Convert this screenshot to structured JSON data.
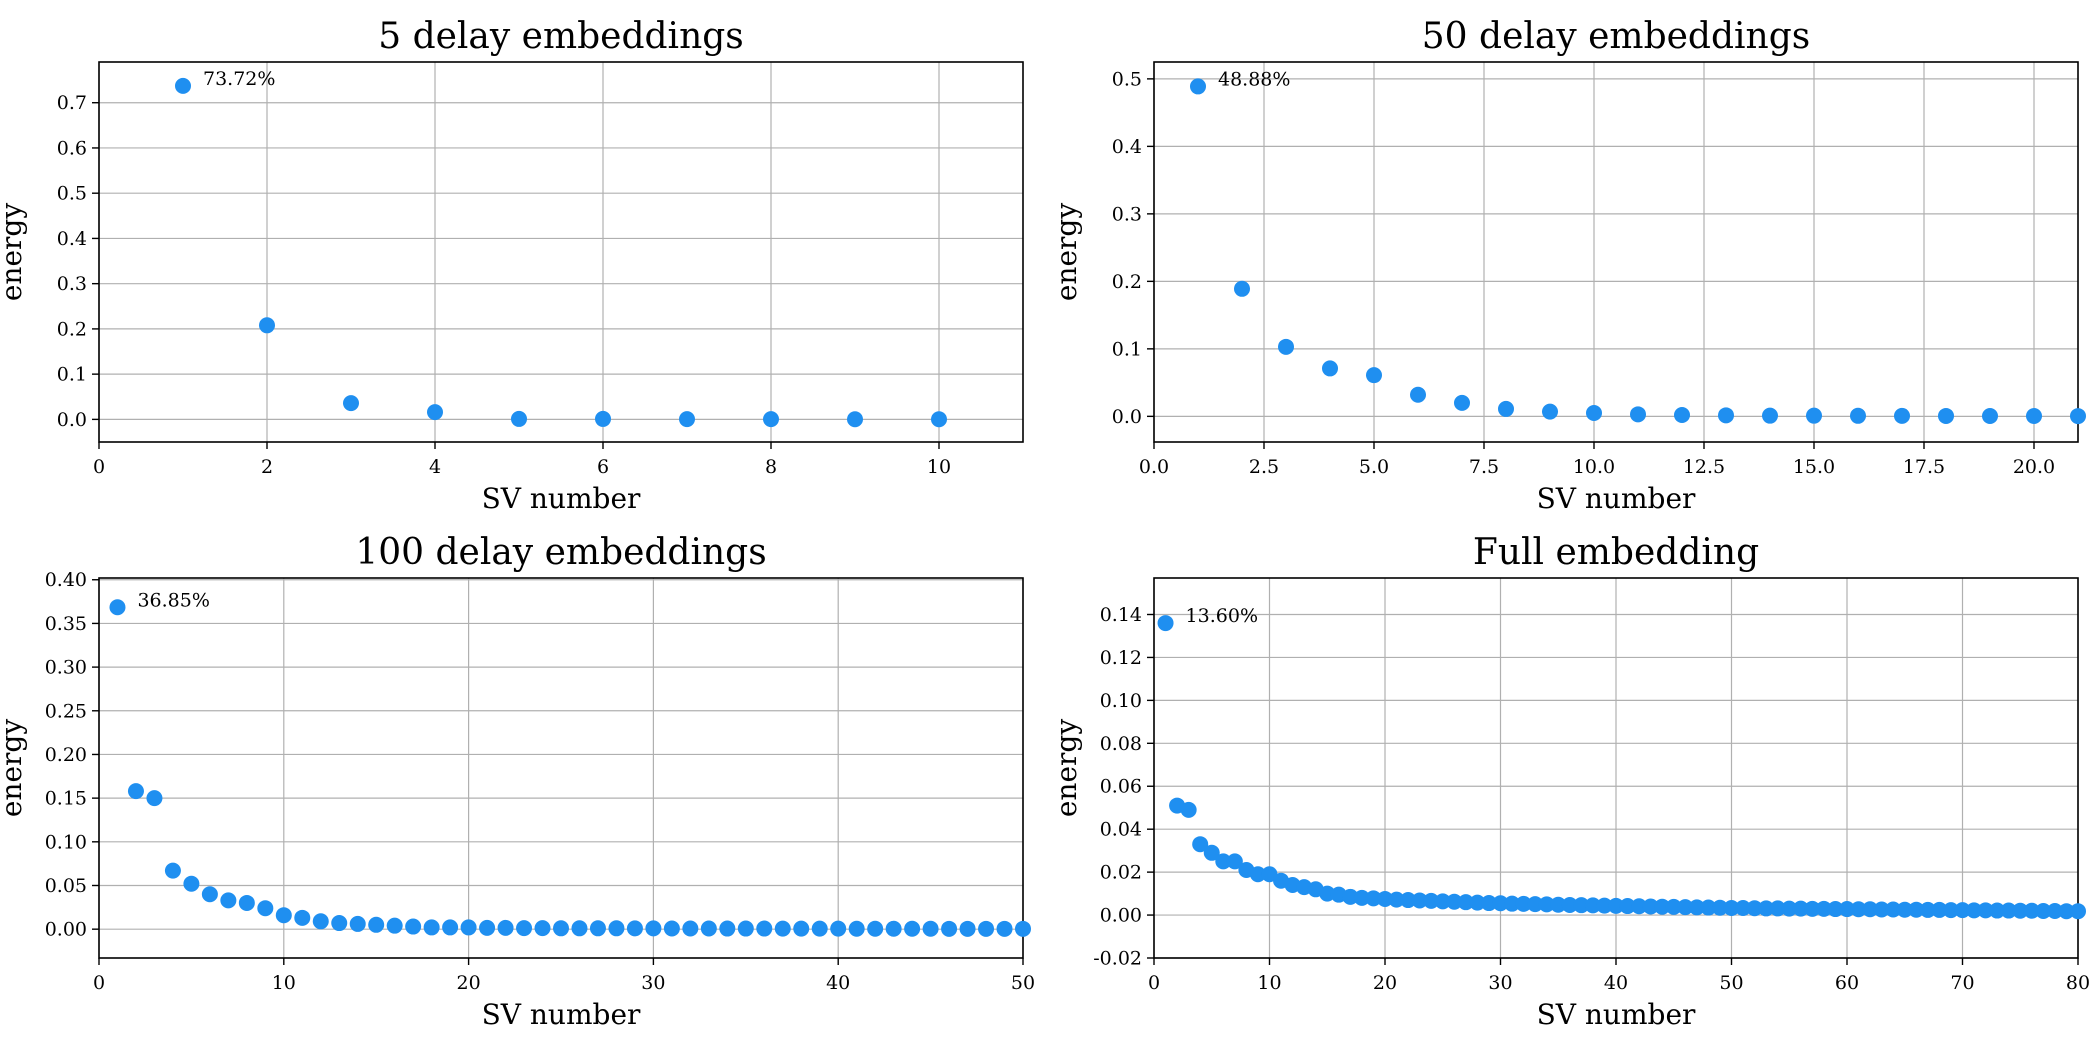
{
  "chart_data": [
    {
      "type": "scatter",
      "title": "5 delay embeddings",
      "xlabel": "SV number",
      "ylabel": "energy",
      "xlim": [
        0,
        11
      ],
      "ylim": [
        -0.05,
        0.79
      ],
      "xticks": [
        0,
        2,
        4,
        6,
        8,
        10
      ],
      "yticks": [
        0.0,
        0.1,
        0.2,
        0.3,
        0.4,
        0.5,
        0.6,
        0.7
      ],
      "xtick_decimals": 0,
      "ytick_decimals": 1,
      "grid": true,
      "color": "#1f8ff0",
      "annotation": "73.72%",
      "x": [
        1,
        2,
        3,
        4,
        5,
        6,
        7,
        8,
        9,
        10
      ],
      "y": [
        0.7372,
        0.208,
        0.036,
        0.016,
        0.001,
        0.001,
        0.0005,
        0.0005,
        0.0003,
        0.0003
      ]
    },
    {
      "type": "scatter",
      "title": "50 delay embeddings",
      "xlabel": "SV number",
      "ylabel": "energy",
      "xlim": [
        0,
        21
      ],
      "ylim": [
        -0.038,
        0.525
      ],
      "xticks": [
        0.0,
        2.5,
        5.0,
        7.5,
        10.0,
        12.5,
        15.0,
        17.5,
        20.0
      ],
      "yticks": [
        0.0,
        0.1,
        0.2,
        0.3,
        0.4,
        0.5
      ],
      "xtick_decimals": 1,
      "ytick_decimals": 1,
      "grid": true,
      "color": "#1f8ff0",
      "annotation": "48.88%",
      "x": [
        1,
        2,
        3,
        4,
        5,
        6,
        7,
        8,
        9,
        10,
        11,
        12,
        13,
        14,
        15,
        16,
        17,
        18,
        19,
        20,
        21
      ],
      "y": [
        0.4888,
        0.189,
        0.103,
        0.071,
        0.061,
        0.032,
        0.02,
        0.011,
        0.007,
        0.005,
        0.003,
        0.002,
        0.0015,
        0.001,
        0.001,
        0.0008,
        0.0007,
        0.0006,
        0.0005,
        0.0005,
        0.0004
      ]
    },
    {
      "type": "scatter",
      "title": "100 delay embeddings",
      "xlabel": "SV number",
      "ylabel": "energy",
      "xlim": [
        0,
        50
      ],
      "ylim": [
        -0.033,
        0.402
      ],
      "xticks": [
        0,
        10,
        20,
        30,
        40,
        50
      ],
      "yticks": [
        0.0,
        0.05,
        0.1,
        0.15,
        0.2,
        0.25,
        0.3,
        0.35,
        0.4
      ],
      "xtick_decimals": 0,
      "ytick_decimals": 2,
      "grid": true,
      "color": "#1f8ff0",
      "annotation": "36.85%",
      "x": [
        1,
        2,
        3,
        4,
        5,
        6,
        7,
        8,
        9,
        10,
        11,
        12,
        13,
        14,
        15,
        16,
        17,
        18,
        19,
        20,
        21,
        22,
        23,
        24,
        25,
        26,
        27,
        28,
        29,
        30,
        31,
        32,
        33,
        34,
        35,
        36,
        37,
        38,
        39,
        40,
        41,
        42,
        43,
        44,
        45,
        46,
        47,
        48,
        49,
        50
      ],
      "y": [
        0.3685,
        0.158,
        0.15,
        0.067,
        0.052,
        0.04,
        0.033,
        0.03,
        0.024,
        0.016,
        0.013,
        0.009,
        0.007,
        0.006,
        0.005,
        0.004,
        0.003,
        0.002,
        0.002,
        0.002,
        0.0015,
        0.0015,
        0.0012,
        0.0012,
        0.001,
        0.001,
        0.001,
        0.001,
        0.0009,
        0.0009,
        0.0008,
        0.0008,
        0.0008,
        0.0007,
        0.0007,
        0.0007,
        0.0006,
        0.0006,
        0.0006,
        0.0006,
        0.0005,
        0.0005,
        0.0005,
        0.0005,
        0.0005,
        0.0004,
        0.0004,
        0.0004,
        0.0004,
        0.0004
      ]
    },
    {
      "type": "scatter",
      "title": "Full embedding",
      "xlabel": "SV number",
      "ylabel": "energy",
      "xlim": [
        0,
        80
      ],
      "ylim": [
        -0.02,
        0.157
      ],
      "xticks": [
        0,
        10,
        20,
        30,
        40,
        50,
        60,
        70,
        80
      ],
      "yticks": [
        -0.02,
        0.0,
        0.02,
        0.04,
        0.06,
        0.08,
        0.1,
        0.12,
        0.14
      ],
      "xtick_decimals": 0,
      "ytick_decimals": 2,
      "grid": true,
      "color": "#1f8ff0",
      "annotation": "13.60%",
      "x": [
        1,
        2,
        3,
        4,
        5,
        6,
        7,
        8,
        9,
        10,
        11,
        12,
        13,
        14,
        15,
        16,
        17,
        18,
        19,
        20,
        21,
        22,
        23,
        24,
        25,
        26,
        27,
        28,
        29,
        30,
        31,
        32,
        33,
        34,
        35,
        36,
        37,
        38,
        39,
        40,
        41,
        42,
        43,
        44,
        45,
        46,
        47,
        48,
        49,
        50,
        51,
        52,
        53,
        54,
        55,
        56,
        57,
        58,
        59,
        60,
        61,
        62,
        63,
        64,
        65,
        66,
        67,
        68,
        69,
        70,
        71,
        72,
        73,
        74,
        75,
        76,
        77,
        78,
        79,
        80
      ],
      "y": [
        0.136,
        0.051,
        0.049,
        0.033,
        0.029,
        0.025,
        0.025,
        0.021,
        0.019,
        0.019,
        0.016,
        0.014,
        0.013,
        0.012,
        0.01,
        0.0095,
        0.0085,
        0.008,
        0.0078,
        0.0075,
        0.0072,
        0.007,
        0.0068,
        0.0066,
        0.0064,
        0.0062,
        0.006,
        0.0058,
        0.0056,
        0.0055,
        0.0053,
        0.0052,
        0.0051,
        0.005,
        0.0048,
        0.0047,
        0.0046,
        0.0045,
        0.0044,
        0.0043,
        0.0042,
        0.0041,
        0.004,
        0.0039,
        0.0038,
        0.0037,
        0.0036,
        0.0035,
        0.0034,
        0.0033,
        0.0033,
        0.0032,
        0.0031,
        0.0031,
        0.003,
        0.003,
        0.0029,
        0.0029,
        0.0028,
        0.0028,
        0.0027,
        0.0027,
        0.0026,
        0.0026,
        0.0025,
        0.0025,
        0.0024,
        0.0024,
        0.0023,
        0.0023,
        0.0022,
        0.0022,
        0.0021,
        0.0021,
        0.002,
        0.002,
        0.0019,
        0.0019,
        0.0018,
        0.0018
      ]
    }
  ]
}
